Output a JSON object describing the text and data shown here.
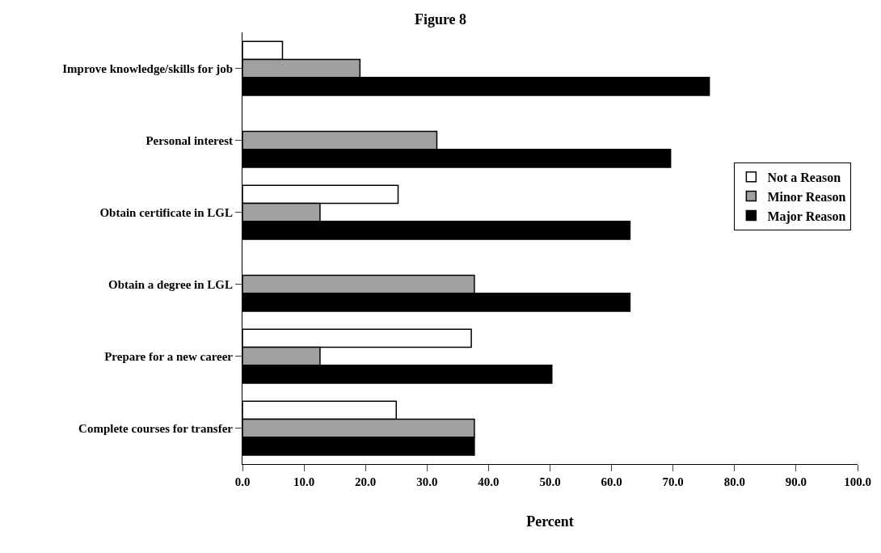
{
  "chart_data": {
    "type": "bar",
    "orientation": "horizontal",
    "title": "Figure 8",
    "xlabel": "Percent",
    "categories": [
      "Improve knowledge/skills for job",
      "Personal interest",
      "Obtain certificate in LGL",
      "Obtain a degree in LGL",
      "Prepare for a new career",
      "Complete courses for transfer"
    ],
    "series": [
      {
        "name": "Not a Reason",
        "color": "#ffffff",
        "values": [
          6.5,
          null,
          25.3,
          null,
          37.2,
          25.0
        ]
      },
      {
        "name": "Minor Reason",
        "color": "#a0a0a0",
        "values": [
          19.1,
          31.6,
          12.6,
          37.7,
          12.6,
          37.7
        ]
      },
      {
        "name": "Major Reason",
        "color": "#000000",
        "values": [
          75.9,
          69.6,
          63.0,
          63.0,
          50.3,
          37.7
        ]
      }
    ],
    "xlim": [
      0,
      100
    ],
    "xticks": [
      {
        "value": 0,
        "label": "0.0"
      },
      {
        "value": 10,
        "label": "10.0"
      },
      {
        "value": 20,
        "label": "20.0"
      },
      {
        "value": 30,
        "label": "30.0"
      },
      {
        "value": 40,
        "label": "40.0"
      },
      {
        "value": 50,
        "label": "50.0"
      },
      {
        "value": 60,
        "label": "60.0"
      },
      {
        "value": 70,
        "label": "70.0"
      },
      {
        "value": 80,
        "label": "80.0"
      },
      {
        "value": 90,
        "label": "90.0"
      },
      {
        "value": 100,
        "label": "100.0"
      }
    ],
    "grid": false,
    "legend": "right"
  }
}
